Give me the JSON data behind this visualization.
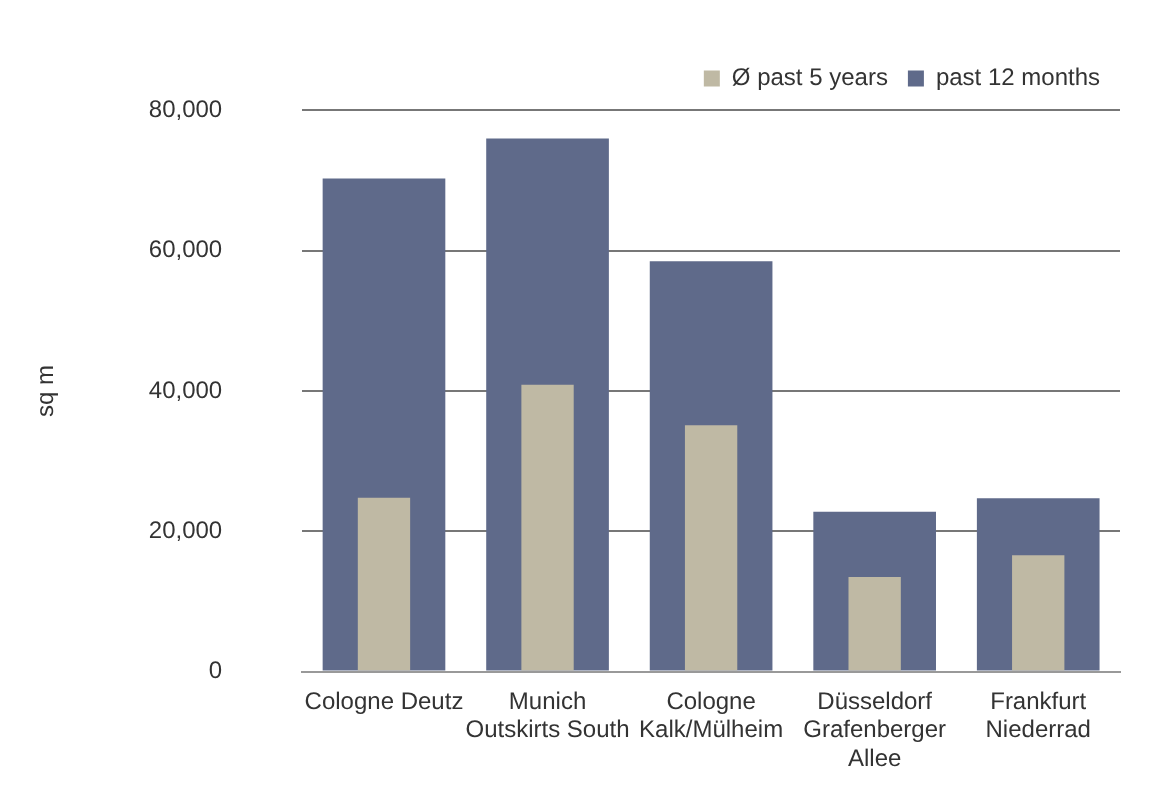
{
  "chart_data": {
    "type": "bar",
    "ylabel": "sq m",
    "categories": [
      "Cologne Deutz",
      "Munich Outskirts South",
      "Cologne Kalk/Mülheim",
      "Düsseldorf Grafenberger Allee",
      "Frankfurt Niederrad"
    ],
    "series": [
      {
        "name": "past 12 months",
        "color": "#5f6a8a",
        "values": [
          70300,
          76000,
          58500,
          22800,
          24700
        ]
      },
      {
        "name": "Ø past 5 years",
        "color": "#bfb9a4",
        "values": [
          24800,
          40900,
          35100,
          13500,
          16600
        ]
      }
    ],
    "ylim": [
      0,
      80000
    ],
    "yticks": [
      {
        "value": 0,
        "label": "0"
      },
      {
        "value": 20000,
        "label": "20,000"
      },
      {
        "value": 40000,
        "label": "40,000"
      },
      {
        "value": 60000,
        "label": "60,000"
      },
      {
        "value": 80000,
        "label": "80,000"
      }
    ],
    "grid": "y",
    "legend": "top right"
  }
}
